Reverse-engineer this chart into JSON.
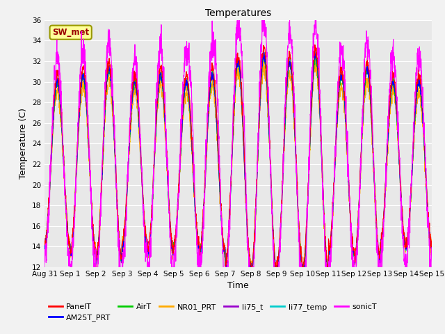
{
  "title": "Temperatures",
  "ylabel": "Temperature (C)",
  "xlabel": "Time",
  "ylim": [
    12,
    36
  ],
  "yticks": [
    12,
    14,
    16,
    18,
    20,
    22,
    24,
    26,
    28,
    30,
    32,
    34,
    36
  ],
  "num_days": 15,
  "series_colors": {
    "PanelT": "#ff0000",
    "AM25T_PRT": "#0000ff",
    "AirT": "#00cc00",
    "NR01_PRT": "#ffaa00",
    "li75_t": "#9900cc",
    "li77_temp": "#00cccc",
    "sonicT": "#ff00ff"
  },
  "annotation_text": "SW_met",
  "annotation_color": "#990000",
  "annotation_bg": "#ffff99",
  "annotation_border": "#999900",
  "plot_bg_color": "#e8e8e8",
  "grid_color": "#ffffff",
  "fig_bg_color": "#f2f2f2",
  "title_fontsize": 10,
  "tick_fontsize": 7.5,
  "label_fontsize": 9,
  "legend_fontsize": 8
}
